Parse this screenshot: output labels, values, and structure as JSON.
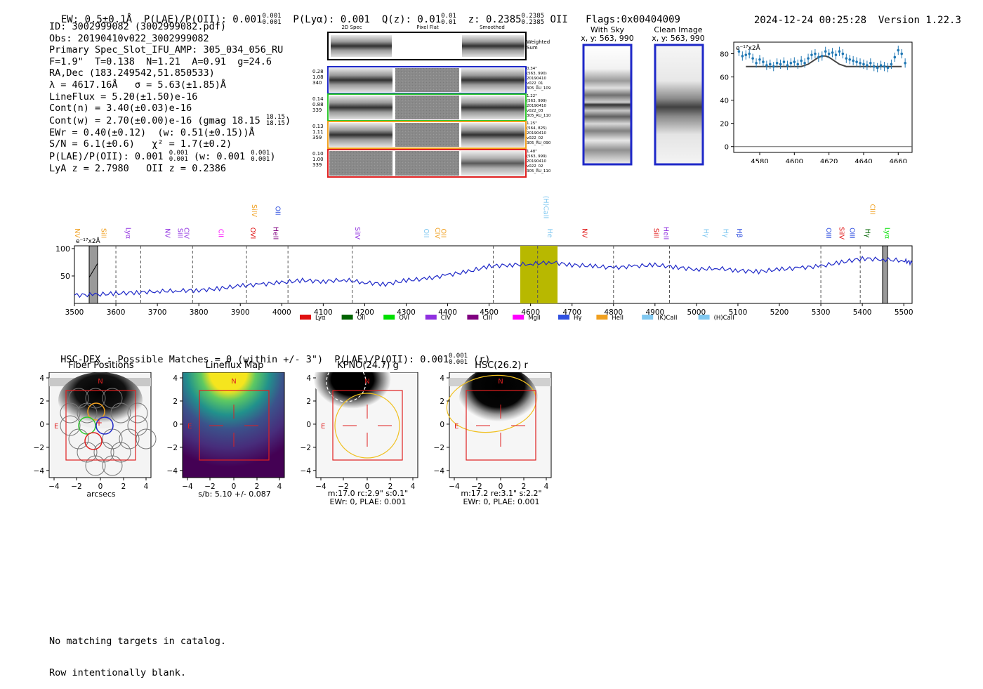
{
  "header": {
    "ew": "EW: 0.5±0.1Å",
    "plae": "P(LAE)/P(OII): 0.001",
    "plae_hi": "0.001",
    "plae_lo": "0.001",
    "plya": "P(Lyα): 0.001",
    "qz": "Q(z): 0.01",
    "qz_hi": "0.01",
    "qz_lo": "0.01",
    "z": "z: 0.2385",
    "z_hi": "0.2385",
    "z_lo": "0.2385",
    "z_line": "OII",
    "flags": "Flags:0x00404009",
    "datetime": "2024-12-24 00:25:28",
    "version": "Version 1.22.3"
  },
  "info": {
    "l1": "ID: 3002999082 (3002999082.pdf)",
    "l2": "Obs: 20190410v022_3002999082",
    "l3": "Primary Spec_Slot_IFU_AMP: 305_034_056_RU",
    "l4": "F=1.9\"  T=0.138  N=1.21  A=0.91  g=24.6",
    "l5": "RA,Dec (183.249542,51.850533)",
    "l6": "λ = 4617.16Å   σ = 5.63(±1.85)Å",
    "l7": "LineFlux = 5.20(±1.50)e-16",
    "l8": "Cont(n) = 3.40(±0.03)e-16",
    "l9": "Cont(w) = 2.70(±0.00)e-16 (gmag 18.15",
    "l9_hi": "18.15",
    "l9_lo": "18.15",
    "l9_end": ")",
    "l10": "EWr = 0.40(±0.12)  (w: 0.51(±0.15))Å",
    "l11": "S/N = 6.1(±0.6)   χ² = 1.7(±0.2)",
    "l12a": "P(LAE)/P(OII): 0.001",
    "l12_hi": "0.001",
    "l12_lo": "0.001",
    "l12b": " (w: 0.001",
    "l12_hi2": "0.001",
    "l12_lo2": "0.001",
    "l12c": ")",
    "l13": "LyA z = 2.7980   OII z = 0.2386"
  },
  "cutouts": {
    "col_headers": [
      "2D Spec",
      "Pixel Flat",
      "Smoothed"
    ],
    "weighted_label": "Weighted\nSum",
    "rows": [
      {
        "left": "0.28\n1.08\n340",
        "right": "0.34\"\n(563, 990)\n20190410\nv022_01\n305_RU_109",
        "color": "#1e28c8"
      },
      {
        "left": "0.14\n0.88\n339",
        "right": "1.22\"\n(563, 999)\n20190410\nv022_03\n305_RU_110",
        "color": "#2ec82e"
      },
      {
        "left": "0.13\n1.11\n359",
        "right": "1.25\"\n(564, 825)\n20190410\nv022_02\n305_RU_090",
        "color": "#f0a020"
      },
      {
        "left": "0.10\n1.00\n339",
        "right": "1.48\"\n(563, 999)\n20190410\nv022_02\n305_RU_110",
        "color": "#e02020"
      }
    ]
  },
  "sky": {
    "with_sky_title": "With Sky",
    "with_sky_coords": "x, y: 563, 990",
    "clean_title": "Clean Image",
    "clean_coords": "x, y: 563, 990"
  },
  "zoom_chart": {
    "ylabel": "e⁻¹⁷x2Å",
    "yticks": [
      "0",
      "20",
      "40",
      "60",
      "80"
    ],
    "xticks": [
      "4580",
      "4600",
      "4620",
      "4640",
      "4660"
    ]
  },
  "spectrum": {
    "ylabel": "e⁻¹⁷x2Å",
    "yticks": [
      "50",
      "100"
    ],
    "xticks": [
      "3500",
      "3600",
      "3700",
      "3800",
      "3900",
      "4000",
      "4100",
      "4200",
      "4300",
      "4400",
      "4500",
      "4600",
      "4700",
      "4800",
      "4900",
      "5000",
      "5100",
      "5200",
      "5300",
      "5400",
      "5500"
    ],
    "legend": [
      {
        "label": "Lyα",
        "color": "#e01010"
      },
      {
        "label": "OII",
        "color": "#006400"
      },
      {
        "label": "OVI",
        "color": "#00e000"
      },
      {
        "label": "CIV",
        "color": "#9030e0"
      },
      {
        "label": "CIII",
        "color": "#800080"
      },
      {
        "label": "MgII",
        "color": "#ff00ff"
      },
      {
        "label": "Hγ",
        "color": "#3050e0"
      },
      {
        "label": "HeII",
        "color": "#f0a020"
      },
      {
        "label": "(K)CaII",
        "color": "#80c8f0"
      },
      {
        "label": "(H)CaII",
        "color": "#80c8f0"
      }
    ],
    "line_labels": [
      {
        "text": "NV",
        "color": "#f0a020"
      },
      {
        "text": "SiII",
        "color": "#f0a020"
      },
      {
        "text": "Lyα",
        "color": "#9030e0"
      },
      {
        "text": "NV",
        "color": "#9030e0"
      },
      {
        "text": "SiII",
        "color": "#9030e0"
      },
      {
        "text": "CIV",
        "color": "#9030e0"
      },
      {
        "text": "CII",
        "color": "#ff00ff"
      },
      {
        "text": "SiIV",
        "color": "#f0a020"
      },
      {
        "text": "OII",
        "color": "#3050e0"
      },
      {
        "text": "OVI",
        "color": "#e01010"
      },
      {
        "text": "HeII",
        "color": "#800080"
      },
      {
        "text": "SiIV",
        "color": "#9030e0"
      },
      {
        "text": "OII",
        "color": "#80c8f0"
      },
      {
        "text": "CIV",
        "color": "#f0a020"
      },
      {
        "text": "OII",
        "color": "#f0a020"
      },
      {
        "text": "(H)CaII",
        "color": "#80c8f0"
      },
      {
        "text": "He",
        "color": "#80c8f0"
      },
      {
        "text": "NV",
        "color": "#e01010"
      },
      {
        "text": "SiII",
        "color": "#e01010"
      },
      {
        "text": "HeII",
        "color": "#9030e0"
      },
      {
        "text": "Hγ",
        "color": "#80c8f0"
      },
      {
        "text": "Hγ",
        "color": "#80c8f0"
      },
      {
        "text": "Hβ",
        "color": "#3050e0"
      },
      {
        "text": "OIII",
        "color": "#3050e0"
      },
      {
        "text": "SiIV",
        "color": "#e01010"
      },
      {
        "text": "OIII",
        "color": "#3050e0"
      },
      {
        "text": "CIII",
        "color": "#f0a020"
      },
      {
        "text": "Hγ",
        "color": "#006400"
      },
      {
        "text": "Lyα",
        "color": "#00e000"
      }
    ]
  },
  "hsc": {
    "text": "HSC-DEX : Possible Matches = 0 (within +/- 3\")  P(LAE)/P(OII): 0.001",
    "hi": "0.001",
    "lo": "0.001",
    "tail": " (r)"
  },
  "maps": [
    {
      "title": "Fiber Positions",
      "sub1": "arcsecs",
      "sub2": "",
      "sub3": ""
    },
    {
      "title": "Lineflux Map",
      "sub1": "s/b: 5.10 +/- 0.087",
      "sub2": "",
      "sub3": ""
    },
    {
      "title": "KPNO(24.7) g",
      "sub1": "m:17.0 rc:2.9\"  s:0.1\"",
      "sub2": "EWr: 0, PLAE: 0.001",
      "sub3": ""
    },
    {
      "title": "HSC(26.2) r",
      "sub1": "m:17.2  re:3.1\"  s:2.2\"",
      "sub2": "EWr: 0, PLAE: 0.001",
      "sub3": ""
    }
  ],
  "map_ticks": {
    "y": [
      "4",
      "2",
      "0",
      "−2",
      "−4"
    ],
    "x": [
      "−4",
      "−2",
      "0",
      "2",
      "4"
    ],
    "n": "N",
    "e": "E"
  },
  "footer": {
    "l1": "No matching targets in catalog.",
    "l2": "Row intentionally blank."
  },
  "chart_data": [
    {
      "type": "line",
      "title": "",
      "xlabel": "",
      "ylabel": "e-17x2Å",
      "xlim": [
        3500,
        5520
      ],
      "ylim": [
        0,
        105
      ],
      "x": [
        3500,
        3550,
        3600,
        3650,
        3700,
        3750,
        3800,
        3850,
        3900,
        3950,
        4000,
        4050,
        4100,
        4150,
        4200,
        4250,
        4300,
        4350,
        4400,
        4450,
        4500,
        4550,
        4600,
        4650,
        4700,
        4750,
        4800,
        4850,
        4900,
        4950,
        5000,
        5050,
        5100,
        5150,
        5200,
        5250,
        5300,
        5350,
        5400,
        5450,
        5500,
        5520
      ],
      "series": [
        {
          "name": "spectrum",
          "values": [
            15,
            16,
            18,
            20,
            22,
            23,
            24,
            27,
            32,
            35,
            38,
            42,
            40,
            43,
            38,
            35,
            42,
            45,
            52,
            58,
            68,
            70,
            72,
            75,
            70,
            68,
            65,
            68,
            70,
            66,
            62,
            64,
            60,
            58,
            62,
            65,
            68,
            75,
            82,
            80,
            78,
            74
          ]
        }
      ],
      "highlight_band": [
        4575,
        4665
      ],
      "vlines": [
        3600,
        3660,
        3785,
        3915,
        4015,
        4170,
        4510,
        4617,
        4800,
        4935,
        5300,
        5395
      ]
    },
    {
      "type": "scatter",
      "title": "",
      "xlabel": "",
      "ylabel": "e-17x2Å",
      "xlim": [
        4565,
        4668
      ],
      "ylim": [
        -5,
        90
      ],
      "x": [
        4568,
        4570,
        4572,
        4574,
        4576,
        4578,
        4580,
        4582,
        4584,
        4586,
        4588,
        4590,
        4592,
        4594,
        4596,
        4598,
        4600,
        4602,
        4604,
        4606,
        4608,
        4610,
        4612,
        4614,
        4616,
        4618,
        4620,
        4622,
        4624,
        4626,
        4628,
        4630,
        4632,
        4634,
        4636,
        4638,
        4640,
        4642,
        4644,
        4646,
        4648,
        4650,
        4652,
        4654,
        4656,
        4658,
        4660,
        4662,
        4664
      ],
      "series": [
        {
          "name": "data",
          "values": [
            82,
            78,
            79,
            80,
            76,
            72,
            75,
            73,
            70,
            71,
            69,
            72,
            71,
            73,
            70,
            72,
            73,
            71,
            74,
            72,
            76,
            79,
            80,
            77,
            78,
            82,
            80,
            81,
            79,
            82,
            80,
            76,
            75,
            74,
            73,
            72,
            71,
            70,
            72,
            69,
            68,
            70,
            69,
            68,
            71,
            77,
            83,
            80,
            72
          ]
        },
        {
          "name": "fit",
          "values": [
            69,
            69,
            69,
            69,
            69,
            69,
            69,
            69,
            69,
            69,
            69,
            69,
            69,
            69,
            69,
            69,
            69,
            69,
            69,
            70,
            71,
            73,
            75,
            77,
            78,
            78,
            77,
            75,
            73,
            71,
            70,
            69,
            69,
            69,
            69,
            69,
            69,
            69,
            69,
            69,
            69,
            69,
            69,
            69,
            69,
            69,
            69,
            69,
            69
          ]
        }
      ]
    }
  ]
}
